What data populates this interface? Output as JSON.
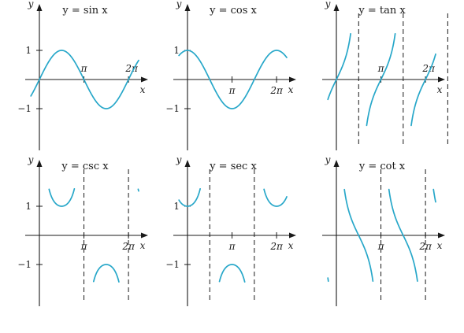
{
  "panels": [
    {
      "id": "sin",
      "title": "y = sin x",
      "function": "sin",
      "axis_labels": {
        "x": "x",
        "y": "y"
      },
      "x_ticks": [
        {
          "value": "pi",
          "label": "π"
        },
        {
          "value": "2pi",
          "label": "2π"
        }
      ],
      "y_ticks": [
        {
          "value": 1,
          "label": "1"
        },
        {
          "value": -1,
          "label": "−1"
        }
      ],
      "x_range": [
        -0.6,
        7.0
      ],
      "y_range": [
        -1.6,
        1.6
      ],
      "asymptotes": []
    },
    {
      "id": "cos",
      "title": "y = cos x",
      "function": "cos",
      "axis_labels": {
        "x": "x",
        "y": "y"
      },
      "x_ticks": [
        {
          "value": "pi",
          "label": "π"
        },
        {
          "value": "2pi",
          "label": "2π"
        }
      ],
      "y_ticks": [
        {
          "value": 1,
          "label": "1"
        },
        {
          "value": -1,
          "label": "−1"
        }
      ],
      "x_range": [
        -0.6,
        7.0
      ],
      "y_range": [
        -1.6,
        1.6
      ],
      "asymptotes": []
    },
    {
      "id": "tan",
      "title": "y = tan x",
      "function": "tan",
      "axis_labels": {
        "x": "x",
        "y": "y"
      },
      "x_ticks": [
        {
          "value": "pi",
          "label": "π"
        },
        {
          "value": "2pi",
          "label": "2π"
        }
      ],
      "y_ticks": [],
      "x_range": [
        -0.6,
        7.0
      ],
      "y_range": [
        -1.6,
        1.6
      ],
      "asymptotes": [
        "pi/2",
        "3pi/2",
        "5pi/2"
      ]
    },
    {
      "id": "csc",
      "title": "y = csc x",
      "function": "csc",
      "axis_labels": {
        "x": "x",
        "y": "y"
      },
      "x_ticks": [
        {
          "value": "pi",
          "label": "π"
        },
        {
          "value": "2pi",
          "label": "2π"
        }
      ],
      "y_ticks": [
        {
          "value": 1,
          "label": "1"
        },
        {
          "value": -1,
          "label": "−1"
        }
      ],
      "x_range": [
        -0.6,
        7.0
      ],
      "y_range": [
        -1.6,
        1.6
      ],
      "asymptotes": [
        "pi",
        "2pi"
      ]
    },
    {
      "id": "sec",
      "title": "y = sec x",
      "function": "sec",
      "axis_labels": {
        "x": "x",
        "y": "y"
      },
      "x_ticks": [
        {
          "value": "pi",
          "label": "π"
        },
        {
          "value": "2pi",
          "label": "2π"
        }
      ],
      "y_ticks": [
        {
          "value": 1,
          "label": "1"
        },
        {
          "value": -1,
          "label": "−1"
        }
      ],
      "x_range": [
        -0.6,
        7.0
      ],
      "y_range": [
        -1.6,
        1.6
      ],
      "asymptotes": [
        "pi/2",
        "3pi/2"
      ]
    },
    {
      "id": "cot",
      "title": "y = cot x",
      "function": "cot",
      "axis_labels": {
        "x": "x",
        "y": "y"
      },
      "x_ticks": [
        {
          "value": "pi",
          "label": "π"
        },
        {
          "value": "2pi",
          "label": "2π"
        }
      ],
      "y_ticks": [],
      "x_range": [
        -0.6,
        7.0
      ],
      "y_range": [
        -1.6,
        1.6
      ],
      "asymptotes": [
        "pi",
        "2pi"
      ]
    }
  ],
  "colors": {
    "curve": "#27a7c9",
    "axis": "#1a1a1a"
  }
}
